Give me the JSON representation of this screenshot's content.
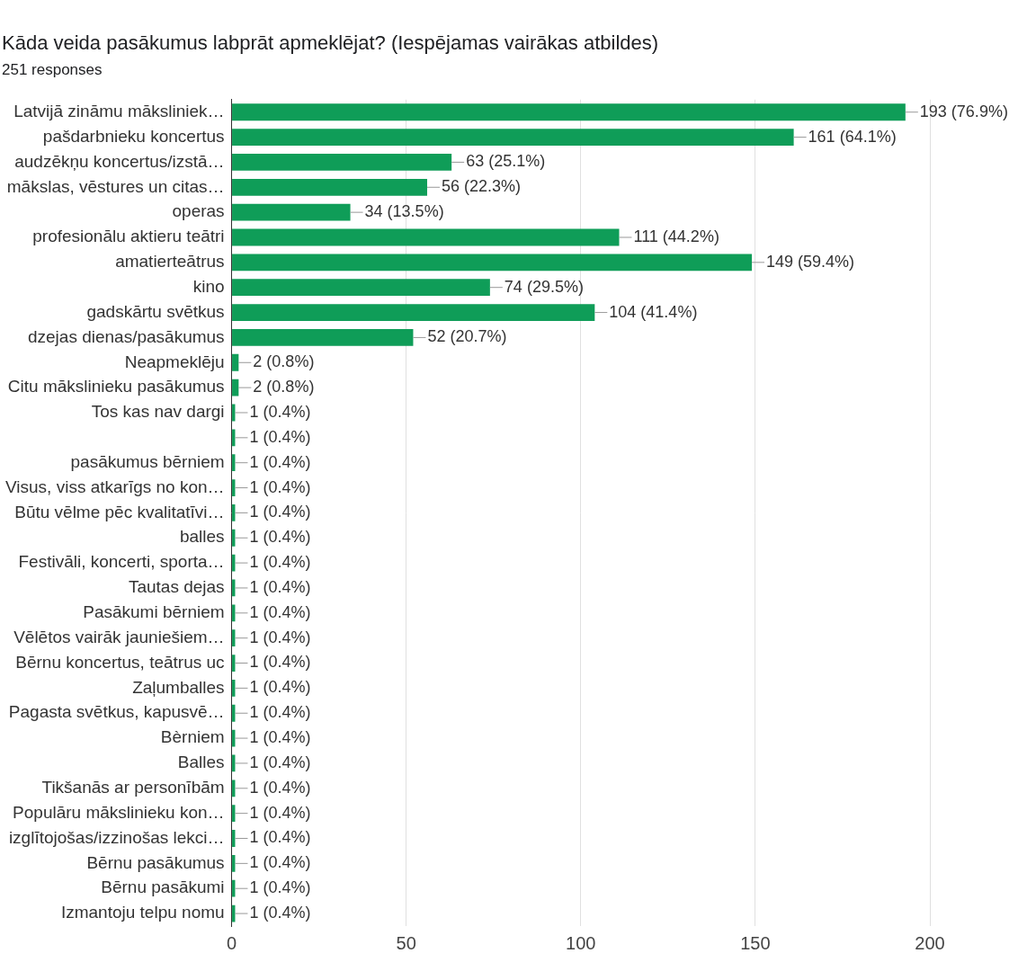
{
  "chart_data": {
    "type": "bar",
    "orientation": "horizontal",
    "title": "Kāda veida pasākumus labprāt apmeklējat? (Iespējamas vairākas atbildes)",
    "subtitle": "251 responses",
    "categories": [
      "Latvijā zināmu māksliniek…",
      "pašdarbnieku koncertus",
      "audzēkņu koncertus/izstā…",
      "mākslas, vēstures un citas…",
      "operas",
      "profesionālu aktieru teātri",
      "amatierteātrus",
      "kino",
      "gadskārtu svētkus",
      "dzejas dienas/pasākumus",
      "Neapmeklēju",
      "Citu mākslinieku pasākumus",
      "Tos kas nav dargi",
      null,
      "pasākumus bērniem",
      "Visus, viss atkarīgs no kon…",
      "Būtu vēlme pēc kvalitatīvi…",
      "balles",
      "Festivāli, koncerti, sporta…",
      "Tautas dejas",
      "Pasākumi bērniem",
      "Vēlētos vairāk jauniešiem…",
      "Bērnu koncertus, teātrus uc",
      "Zaļumballes",
      "Pagasta svētkus, kapusvē…",
      "Bèrniem",
      "Balles",
      "Tikšanās ar personībām",
      "Populāru mākslinieku kon…",
      "izglītojošas/izzinošas lekci…",
      "Bērnu pasākumus",
      "Bērnu pasākumi",
      "Izmantoju telpu nomu"
    ],
    "values": [
      193,
      161,
      63,
      56,
      34,
      111,
      149,
      74,
      104,
      52,
      2,
      2,
      1,
      1,
      1,
      1,
      1,
      1,
      1,
      1,
      1,
      1,
      1,
      1,
      1,
      1,
      1,
      1,
      1,
      1,
      1,
      1,
      1
    ],
    "value_labels": [
      "193 (76.9%)",
      "161 (64.1%)",
      "63 (25.1%)",
      "56 (22.3%)",
      "34 (13.5%)",
      "111 (44.2%)",
      "149 (59.4%)",
      "74 (29.5%)",
      "104 (41.4%)",
      "52 (20.7%)",
      "2 (0.8%)",
      "2 (0.8%)",
      "1 (0.4%)",
      "1 (0.4%)",
      "1 (0.4%)",
      "1 (0.4%)",
      "1 (0.4%)",
      "1 (0.4%)",
      "1 (0.4%)",
      "1 (0.4%)",
      "1 (0.4%)",
      "1 (0.4%)",
      "1 (0.4%)",
      "1 (0.4%)",
      "1 (0.4%)",
      "1 (0.4%)",
      "1 (0.4%)",
      "1 (0.4%)",
      "1 (0.4%)",
      "1 (0.4%)",
      "1 (0.4%)",
      "1 (0.4%)",
      "1 (0.4%)"
    ],
    "color": "#0f9d58",
    "xlim": [
      0,
      200
    ],
    "xticks": [
      0,
      50,
      100,
      150,
      200
    ],
    "grid": true,
    "data_labels": true
  }
}
